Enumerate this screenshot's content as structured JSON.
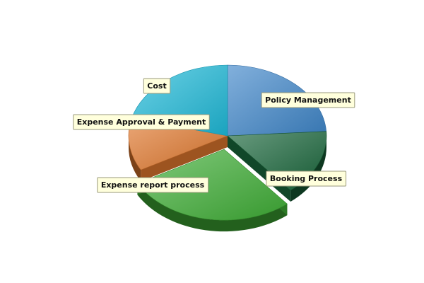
{
  "chart_data": {
    "type": "pie",
    "style": "3d-exploded",
    "categories": [
      "Policy Management",
      "Booking Process",
      "Expense report process",
      "Expense Approval & Payment",
      "Cost"
    ],
    "values": [
      24,
      15,
      28,
      12,
      21
    ],
    "exploded": [
      "Expense report process"
    ],
    "colors": [
      "#3f86c9",
      "#18653a",
      "#3fae35",
      "#e0782e",
      "#1eb9d8"
    ]
  }
}
